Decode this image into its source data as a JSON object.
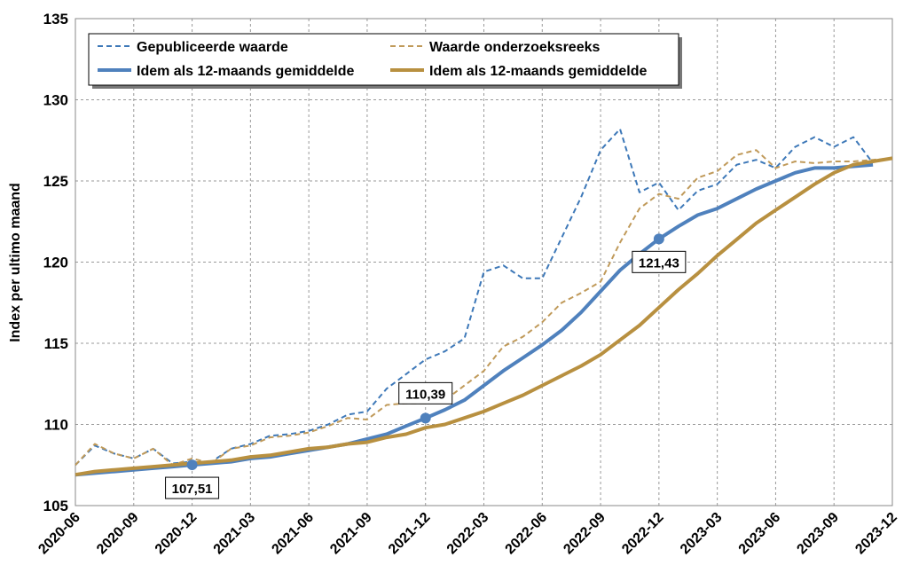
{
  "chart_data": {
    "type": "line",
    "y_label": "Index per ultimo maand",
    "categories": [
      "2020-06",
      null,
      null,
      "2020-09",
      null,
      null,
      "2020-12",
      null,
      null,
      "2021-03",
      null,
      null,
      "2021-06",
      null,
      null,
      "2021-09",
      null,
      null,
      "2021-12",
      null,
      null,
      "2022-03",
      null,
      null,
      "2022-06",
      null,
      null,
      "2022-09",
      null,
      null,
      "2022-12",
      null,
      null,
      "2023-03",
      null,
      null,
      "2023-06",
      null,
      null,
      "2023-09",
      null,
      null,
      "2023-12"
    ],
    "ylim": [
      105,
      135
    ],
    "yticks": [
      105,
      110,
      115,
      120,
      125,
      130,
      135
    ],
    "grid": true,
    "legend": "top-left",
    "series": [
      {
        "name": "Gepubliceerde waarde",
        "color": "#3d78b8",
        "dashed": true,
        "values": [
          107.5,
          108.7,
          108.2,
          107.9,
          108.5,
          107.6,
          107.7,
          107.7,
          108.5,
          108.8,
          109.3,
          109.4,
          109.6,
          110.0,
          110.6,
          110.8,
          112.2,
          113.1,
          114.0,
          114.5,
          115.3,
          119.4,
          119.8,
          119.0,
          119.0,
          121.5,
          124.0,
          126.9,
          128.2,
          124.3,
          124.9,
          123.2,
          124.4,
          124.8,
          126.0,
          126.3,
          125.8,
          127.1,
          127.7,
          127.1,
          127.7,
          126.1,
          null
        ]
      },
      {
        "name": "Waarde onderzoeksreeks",
        "color": "#c09a5a",
        "dashed": true,
        "values": [
          107.5,
          108.8,
          108.2,
          107.9,
          108.5,
          107.5,
          107.9,
          107.6,
          108.5,
          108.7,
          109.2,
          109.3,
          109.5,
          109.9,
          110.4,
          110.3,
          111.2,
          111.3,
          111.3,
          111.5,
          112.4,
          113.3,
          114.8,
          115.4,
          116.3,
          117.5,
          118.1,
          118.8,
          121.2,
          123.3,
          124.2,
          123.9,
          125.2,
          125.6,
          126.6,
          126.9,
          125.8,
          126.2,
          126.1,
          126.2,
          126.2,
          126.3,
          126.4
        ]
      },
      {
        "name": "Idem als 12-maands gemiddelde",
        "color": "#4f81bd",
        "dashed": false,
        "values": [
          106.9,
          107.0,
          107.1,
          107.2,
          107.3,
          107.4,
          107.51,
          107.6,
          107.7,
          107.9,
          108.0,
          108.2,
          108.4,
          108.6,
          108.8,
          109.1,
          109.4,
          109.9,
          110.39,
          110.9,
          111.5,
          112.4,
          113.3,
          114.1,
          114.9,
          115.8,
          116.9,
          118.2,
          119.5,
          120.5,
          121.43,
          122.2,
          122.9,
          123.3,
          123.9,
          124.5,
          125.0,
          125.5,
          125.8,
          125.8,
          125.9,
          126.0,
          null
        ],
        "value_labels": [
          null,
          null,
          null,
          null,
          null,
          null,
          "107,51",
          null,
          null,
          null,
          null,
          null,
          null,
          null,
          null,
          null,
          null,
          null,
          "110,39",
          null,
          null,
          null,
          null,
          null,
          null,
          null,
          null,
          null,
          null,
          null,
          "121,43",
          null,
          null,
          null,
          null,
          null,
          null,
          null,
          null,
          null,
          null,
          null,
          null
        ]
      },
      {
        "name": "Idem als 12-maands gemiddelde",
        "color": "#b89040",
        "dashed": false,
        "values": [
          106.9,
          107.1,
          107.2,
          107.3,
          107.4,
          107.5,
          107.6,
          107.7,
          107.8,
          108.0,
          108.1,
          108.3,
          108.5,
          108.6,
          108.8,
          108.9,
          109.2,
          109.4,
          109.8,
          110.0,
          110.4,
          110.8,
          111.3,
          111.8,
          112.4,
          113.0,
          113.6,
          114.3,
          115.2,
          116.1,
          117.2,
          118.3,
          119.3,
          120.4,
          121.4,
          122.4,
          123.2,
          124.0,
          124.8,
          125.5,
          126.0,
          126.2,
          126.4
        ]
      }
    ]
  }
}
